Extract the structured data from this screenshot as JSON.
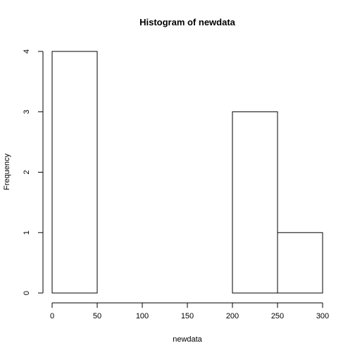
{
  "chart_data": {
    "type": "bar",
    "subtype": "histogram",
    "title": "Histogram of newdata",
    "xlabel": "newdata",
    "ylabel": "Frequency",
    "xlim": [
      0,
      300
    ],
    "ylim": [
      0,
      4
    ],
    "x_ticks": [
      0,
      50,
      100,
      150,
      200,
      250,
      300
    ],
    "y_ticks": [
      0,
      1,
      2,
      3,
      4
    ],
    "bins": [
      {
        "start": 0,
        "end": 50,
        "count": 4
      },
      {
        "start": 50,
        "end": 100,
        "count": 0
      },
      {
        "start": 100,
        "end": 150,
        "count": 0
      },
      {
        "start": 150,
        "end": 200,
        "count": 0
      },
      {
        "start": 200,
        "end": 250,
        "count": 3
      },
      {
        "start": 250,
        "end": 300,
        "count": 1
      }
    ],
    "grid": false,
    "legend": "none",
    "bar_fill": "#ffffff",
    "bar_stroke": "#000000"
  }
}
